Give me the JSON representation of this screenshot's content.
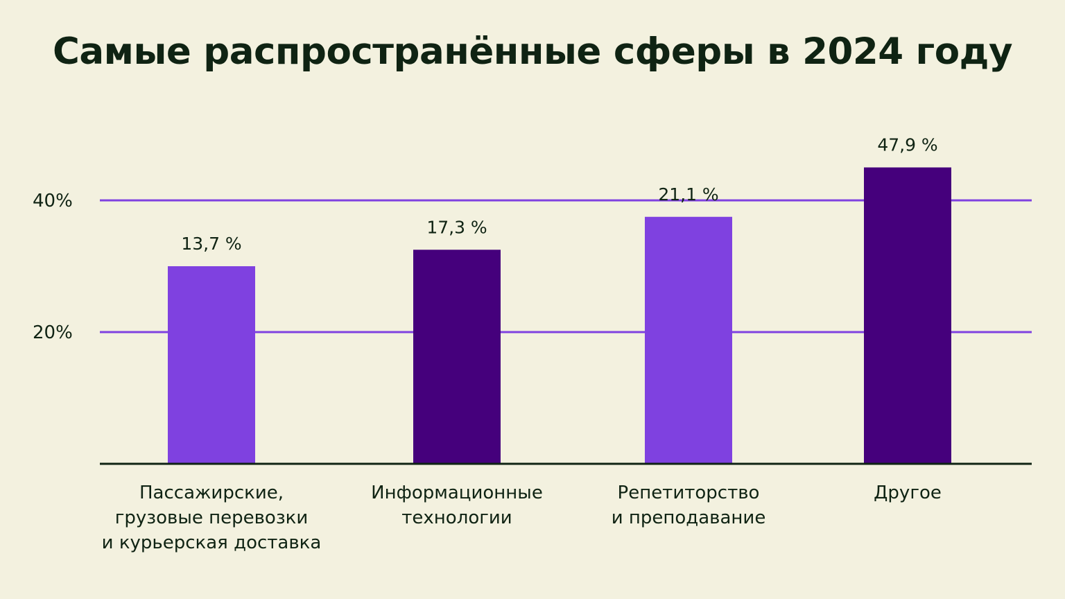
{
  "chart_data": {
    "type": "bar",
    "title": "Самые распространённые сферы в 2024 году",
    "categories": [
      "Пассажирские,\nгрузовые перевозки\nи курьерская доставка",
      "Информационные\nтехнологии",
      "Репетиторство\nи преподавание",
      "Другое"
    ],
    "values": [
      13.7,
      17.3,
      21.1,
      47.9
    ],
    "value_labels": [
      "13,7 %",
      "17,3 %",
      "21,1 %",
      "47,9 %"
    ],
    "bar_heights_percent": [
      30,
      32.5,
      37.5,
      45
    ],
    "ylim": [
      0,
      50
    ],
    "yticks": [
      {
        "value": 20,
        "label": "20%"
      },
      {
        "value": 40,
        "label": "40%"
      }
    ],
    "xlabel": "",
    "ylabel": "",
    "grid": true,
    "legend": "none",
    "bar_colors": [
      "#7f41e0",
      "#45007c",
      "#7f41e0",
      "#45007c"
    ],
    "gridline_color": "#7f41e0",
    "axis_color": "#0f2313",
    "background_color": "#f3f1df"
  }
}
